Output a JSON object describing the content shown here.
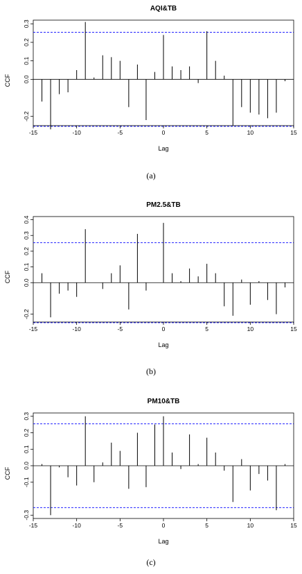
{
  "chart_data": [
    {
      "type": "bar",
      "title": "AQI&TB",
      "xlabel": "Lag",
      "ylabel": "CCF",
      "xlim": [
        -15,
        15
      ],
      "ylim": [
        -0.25,
        0.32
      ],
      "xticks": [
        -15,
        -10,
        -5,
        0,
        5,
        10,
        15
      ],
      "yticks": [
        -0.2,
        0.0,
        0.1,
        0.2,
        0.3
      ],
      "ytick_labels": [
        "-0.2",
        "0.0",
        "0.1",
        "0.2",
        "0.3"
      ],
      "confidence_bound": 0.254,
      "lags": [
        -14,
        -13,
        -12,
        -11,
        -10,
        -9,
        -8,
        -7,
        -6,
        -5,
        -4,
        -3,
        -2,
        -1,
        0,
        1,
        2,
        3,
        4,
        5,
        6,
        7,
        8,
        9,
        10,
        11,
        12,
        13,
        14
      ],
      "values": [
        -0.12,
        -0.27,
        -0.08,
        -0.07,
        0.05,
        0.31,
        0.01,
        0.13,
        0.12,
        0.1,
        -0.15,
        0.08,
        -0.22,
        0.04,
        0.24,
        0.07,
        0.05,
        0.07,
        -0.02,
        0.26,
        0.1,
        0.02,
        -0.25,
        -0.15,
        -0.18,
        -0.19,
        -0.21,
        -0.18,
        -0.01
      ],
      "caption": "(a)"
    },
    {
      "type": "bar",
      "title": "PM2.5&TB",
      "xlabel": "Lag",
      "ylabel": "CCF",
      "xlim": [
        -15,
        15
      ],
      "ylim": [
        -0.25,
        0.42
      ],
      "xticks": [
        -15,
        -10,
        -5,
        0,
        5,
        10,
        15
      ],
      "yticks": [
        -0.2,
        0.0,
        0.1,
        0.2,
        0.3,
        0.4
      ],
      "ytick_labels": [
        "-0.2",
        "0.0",
        "0.1",
        "0.2",
        "0.3",
        "0.4"
      ],
      "confidence_bound": 0.254,
      "lags": [
        -14,
        -13,
        -12,
        -11,
        -10,
        -9,
        -8,
        -7,
        -6,
        -5,
        -4,
        -3,
        -2,
        -1,
        0,
        1,
        2,
        3,
        4,
        5,
        6,
        7,
        8,
        9,
        10,
        11,
        12,
        13,
        14
      ],
      "values": [
        0.06,
        -0.22,
        -0.07,
        -0.05,
        -0.09,
        0.34,
        0.0,
        -0.04,
        0.06,
        0.11,
        -0.17,
        0.31,
        -0.05,
        0.0,
        0.38,
        0.06,
        0.01,
        0.09,
        0.04,
        0.12,
        0.06,
        -0.15,
        -0.21,
        0.02,
        -0.14,
        0.01,
        -0.11,
        -0.2,
        -0.03
      ],
      "caption": "(b)"
    },
    {
      "type": "bar",
      "title": "PM10&TB",
      "xlabel": "Lag",
      "ylabel": "CCF",
      "xlim": [
        -15,
        15
      ],
      "ylim": [
        -0.32,
        0.32
      ],
      "xticks": [
        -15,
        -10,
        -5,
        0,
        5,
        10,
        15
      ],
      "yticks": [
        -0.3,
        -0.1,
        0.0,
        0.1,
        0.2,
        0.3
      ],
      "ytick_labels": [
        "-0.3",
        "-0.1",
        "0.0",
        "0.1",
        "0.2",
        "0.3"
      ],
      "confidence_bound": 0.254,
      "lags": [
        -14,
        -13,
        -12,
        -11,
        -10,
        -9,
        -8,
        -7,
        -6,
        -5,
        -4,
        -3,
        -2,
        -1,
        0,
        1,
        2,
        3,
        4,
        5,
        6,
        7,
        8,
        9,
        10,
        11,
        12,
        13,
        14
      ],
      "values": [
        0.01,
        -0.3,
        -0.01,
        -0.07,
        -0.12,
        0.3,
        -0.1,
        0.02,
        0.14,
        0.09,
        -0.14,
        0.2,
        -0.13,
        0.25,
        0.3,
        0.08,
        -0.02,
        0.19,
        0.01,
        0.17,
        0.08,
        -0.03,
        -0.22,
        0.04,
        -0.15,
        -0.05,
        -0.09,
        -0.27,
        0.01
      ],
      "caption": "(c)"
    }
  ],
  "colors": {
    "bars": "#000000",
    "confidence_lines": "#0000ff",
    "frame": "#000000"
  }
}
